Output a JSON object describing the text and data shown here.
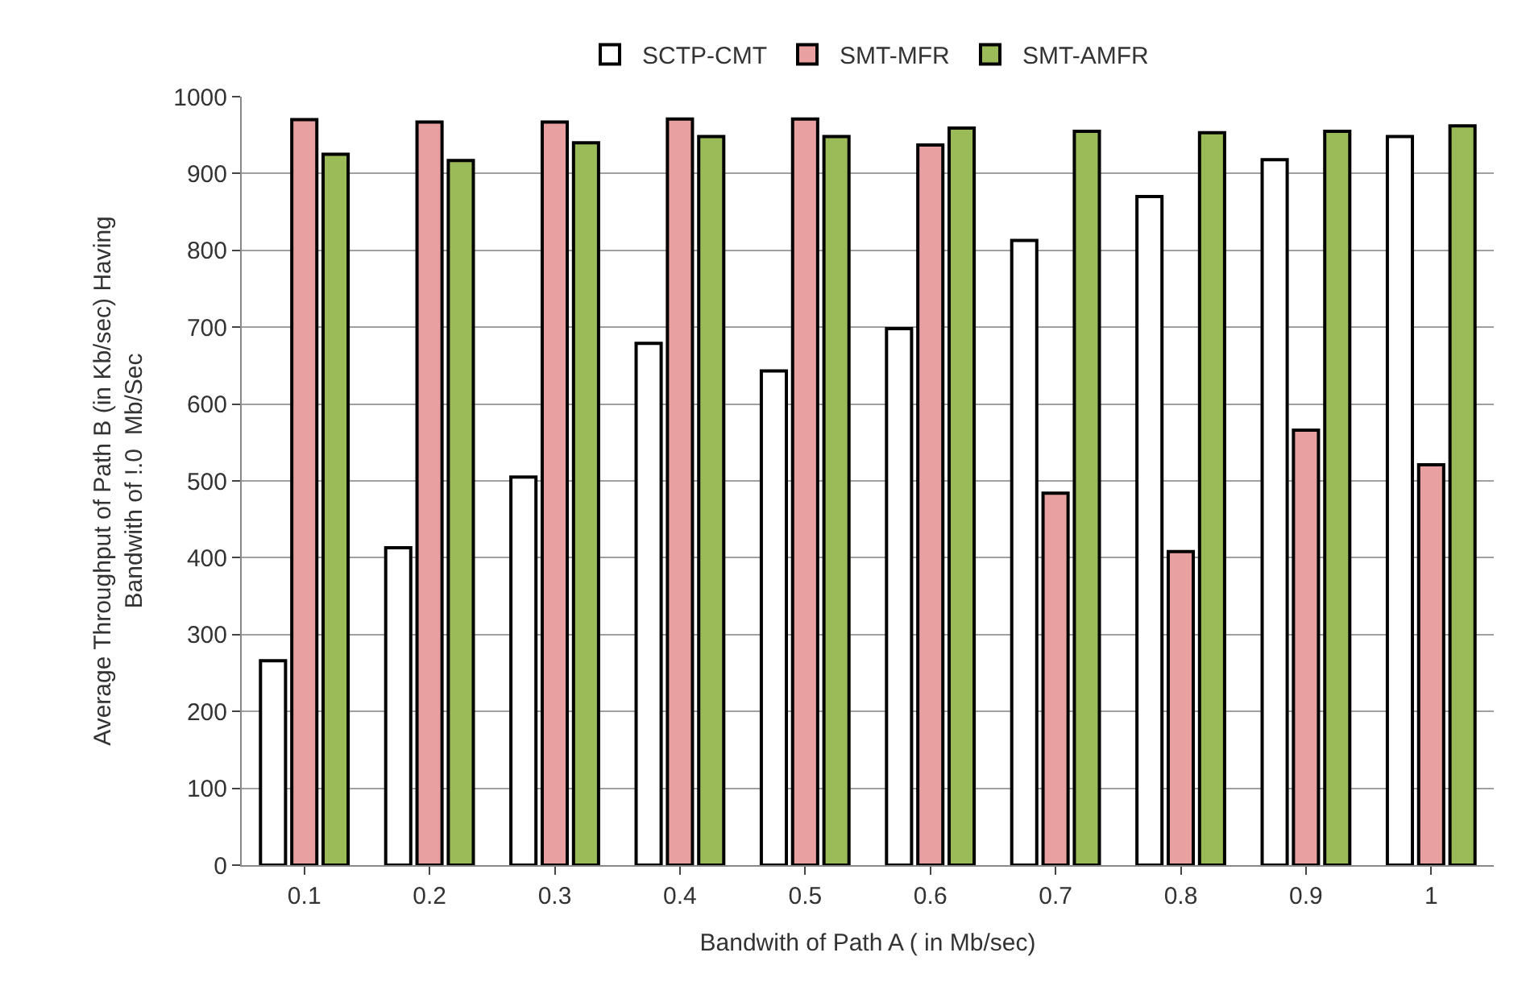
{
  "chart_data": {
    "type": "bar",
    "xlabel": "Bandwith of Path A ( in Mb/sec)",
    "ylabel": "Average Throughput of Path B (in Kb/sec) Having\nBandwith of !.0  Mb/Sec",
    "categories": [
      "0.1",
      "0.2",
      "0.3",
      "0.4",
      "0.5",
      "0.6",
      "0.7",
      "0.8",
      "0.9",
      "1"
    ],
    "series": [
      {
        "name": "SCTP-CMT",
        "color": "#ffffff",
        "values": [
          266,
          413,
          505,
          679,
          643,
          698,
          813,
          870,
          918,
          948
        ]
      },
      {
        "name": "SMT-MFR",
        "color": "#e8a0a0",
        "values": [
          970,
          967,
          967,
          971,
          971,
          937,
          484,
          408,
          566,
          521
        ]
      },
      {
        "name": "SMT-AMFR",
        "color": "#9bbb59",
        "values": [
          925,
          917,
          940,
          948,
          948,
          959,
          955,
          953,
          955,
          962
        ]
      }
    ],
    "ylim": [
      0,
      1000
    ],
    "yticks": [
      0,
      100,
      200,
      300,
      400,
      500,
      600,
      700,
      800,
      900,
      1000
    ],
    "grid": "y",
    "legend": "top"
  }
}
